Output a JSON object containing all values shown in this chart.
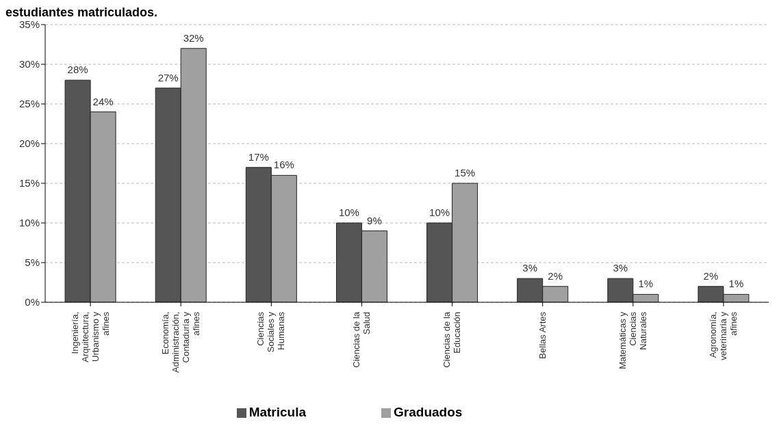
{
  "chart_data": {
    "type": "bar",
    "title": "estudiantes matriculados.",
    "categories": [
      "Ingeniería, Arquitectura, Urbanismo y afines",
      "Economía, Administración, Contaduría y afines",
      "Ciencias Sociales y Humanas",
      "Ciencias de la Salud",
      "Ciencias de la Educación",
      "Bellas Artes",
      "Matemáticas y Ciencias Naturales",
      "Agronomía, veterinaria y afines"
    ],
    "series": [
      {
        "name": "Matricula",
        "color": "#555555",
        "values": [
          28,
          27,
          17,
          10,
          10,
          3,
          3,
          2
        ],
        "value_labels": [
          "28%",
          "27%",
          "17%",
          "10%",
          "10%",
          "3%",
          "3%",
          "2%"
        ]
      },
      {
        "name": "Graduados",
        "color": "#a0a0a0",
        "values": [
          24,
          32,
          16,
          9,
          15,
          2,
          1,
          1
        ],
        "value_labels": [
          "24%",
          "32%",
          "16%",
          "9%",
          "15%",
          "2%",
          "1%",
          "1%"
        ]
      }
    ],
    "ylim": [
      0,
      35
    ],
    "yticks": [
      {
        "value": 0,
        "label": "0%"
      },
      {
        "value": 5,
        "label": "5%"
      },
      {
        "value": 10,
        "label": "10%"
      },
      {
        "value": 15,
        "label": "15%"
      },
      {
        "value": 20,
        "label": "20%"
      },
      {
        "value": 25,
        "label": "25%"
      },
      {
        "value": 30,
        "label": "30%"
      },
      {
        "value": 35,
        "label": "35%"
      }
    ],
    "grid": "y",
    "legend": "bottom"
  }
}
